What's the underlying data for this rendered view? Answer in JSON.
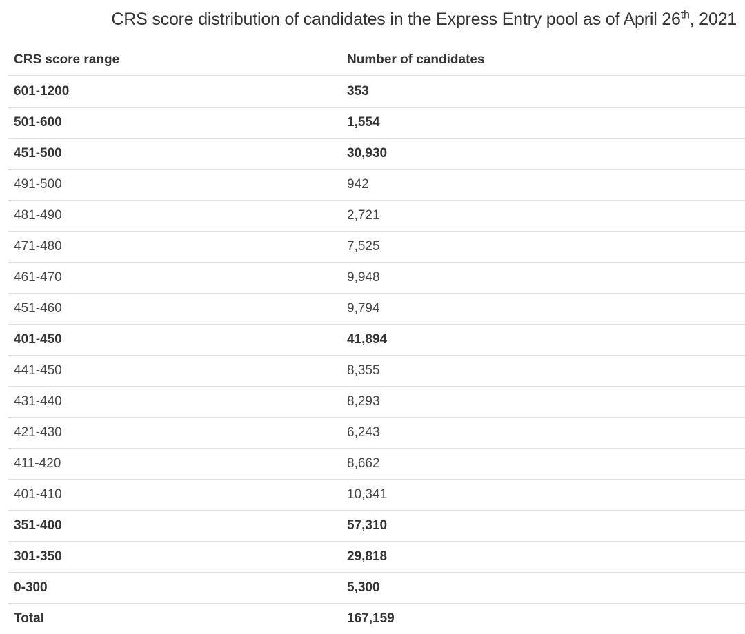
{
  "title": {
    "prefix": "CRS score distribution of candidates in the Express Entry pool as of April 26",
    "suffix": "th",
    "year": ", 2021"
  },
  "table": {
    "headers": [
      "CRS score range",
      "Number of candidates"
    ],
    "rows": [
      {
        "range": "601-1200",
        "count": "353",
        "bold": true
      },
      {
        "range": "501-600",
        "count": "1,554",
        "bold": true
      },
      {
        "range": "451-500",
        "count": "30,930",
        "bold": true
      },
      {
        "range": "491-500",
        "count": "942",
        "bold": false
      },
      {
        "range": "481-490",
        "count": "2,721",
        "bold": false
      },
      {
        "range": "471-480",
        "count": "7,525",
        "bold": false
      },
      {
        "range": "461-470",
        "count": "9,948",
        "bold": false
      },
      {
        "range": "451-460",
        "count": "9,794",
        "bold": false
      },
      {
        "range": "401-450",
        "count": "41,894",
        "bold": true
      },
      {
        "range": "441-450",
        "count": "8,355",
        "bold": false
      },
      {
        "range": "431-440",
        "count": "8,293",
        "bold": false
      },
      {
        "range": "421-430",
        "count": "6,243",
        "bold": false
      },
      {
        "range": "411-420",
        "count": "8,662",
        "bold": false
      },
      {
        "range": "401-410",
        "count": "10,341",
        "bold": false
      },
      {
        "range": "351-400",
        "count": "57,310",
        "bold": true
      },
      {
        "range": "301-350",
        "count": "29,818",
        "bold": true
      },
      {
        "range": "0-300",
        "count": "5,300",
        "bold": true
      },
      {
        "range": "Total",
        "count": "167,159",
        "bold": true
      }
    ]
  }
}
